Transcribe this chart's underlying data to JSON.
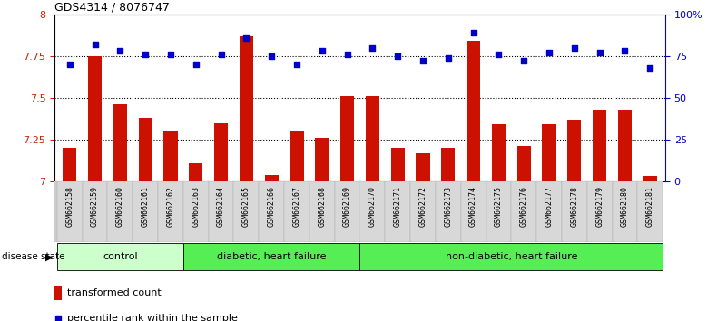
{
  "title": "GDS4314 / 8076747",
  "samples": [
    "GSM662158",
    "GSM662159",
    "GSM662160",
    "GSM662161",
    "GSM662162",
    "GSM662163",
    "GSM662164",
    "GSM662165",
    "GSM662166",
    "GSM662167",
    "GSM662168",
    "GSM662169",
    "GSM662170",
    "GSM662171",
    "GSM662172",
    "GSM662173",
    "GSM662174",
    "GSM662175",
    "GSM662176",
    "GSM662177",
    "GSM662178",
    "GSM662179",
    "GSM662180",
    "GSM662181"
  ],
  "bar_values": [
    7.2,
    7.75,
    7.46,
    7.38,
    7.3,
    7.11,
    7.35,
    7.87,
    7.04,
    7.3,
    7.26,
    7.51,
    7.51,
    7.2,
    7.17,
    7.2,
    7.84,
    7.34,
    7.21,
    7.34,
    7.37,
    7.43,
    7.43,
    7.03
  ],
  "dot_values": [
    70,
    82,
    78,
    76,
    76,
    70,
    76,
    86,
    75,
    70,
    78,
    76,
    80,
    75,
    72,
    74,
    89,
    76,
    72,
    77,
    80,
    77,
    78,
    68
  ],
  "groups": [
    {
      "label": "control",
      "start": 0,
      "end": 5,
      "color": "#ccffcc"
    },
    {
      "label": "diabetic, heart failure",
      "start": 5,
      "end": 12,
      "color": "#55ee55"
    },
    {
      "label": "non-diabetic, heart failure",
      "start": 12,
      "end": 24,
      "color": "#55ee55"
    }
  ],
  "bar_color": "#cc1100",
  "dot_color": "#0000cc",
  "ylim_left": [
    7.0,
    8.0
  ],
  "ylim_right": [
    0,
    100
  ],
  "yticks_left": [
    7.0,
    7.25,
    7.5,
    7.75,
    8.0
  ],
  "ytick_labels_left": [
    "7",
    "7.25",
    "7.5",
    "7.75",
    "8"
  ],
  "yticks_right": [
    0,
    25,
    50,
    75,
    100
  ],
  "ytick_labels_right": [
    "0",
    "25",
    "50",
    "75",
    "100%"
  ],
  "hlines": [
    7.25,
    7.5,
    7.75
  ],
  "legend_bar": "transformed count",
  "legend_dot": "percentile rank within the sample",
  "disease_state_label": "disease state"
}
